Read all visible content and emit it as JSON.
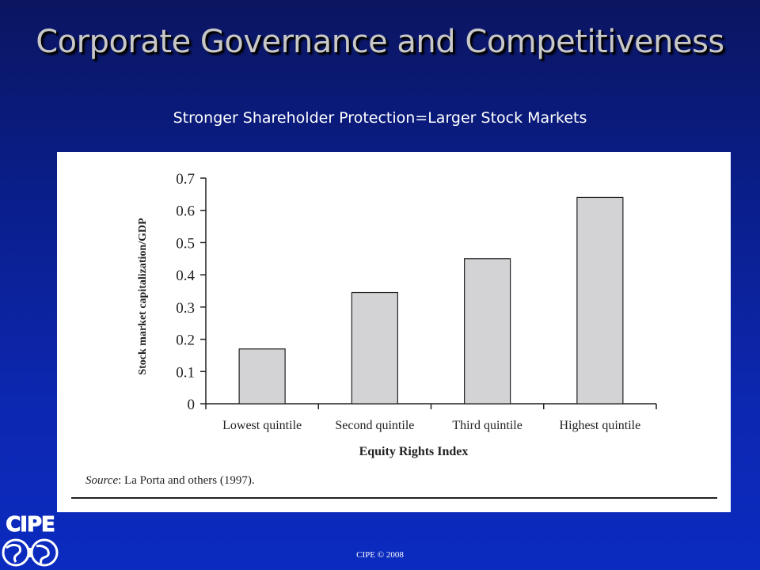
{
  "slide": {
    "title": "Corporate Governance and Competitiveness",
    "subtitle": "Stronger Shareholder Protection=Larger Stock Markets",
    "footer": "CIPE © 2008",
    "logo_text": "CIPE",
    "source_label": "Source",
    "source_text": ": La Porta and others (1997)."
  },
  "colors": {
    "bar_fill": "#d3d3d6",
    "bar_stroke": "#222222",
    "axis": "#222222"
  },
  "chart_data": {
    "type": "bar",
    "title": "",
    "xlabel": "Equity Rights Index",
    "ylabel": "Stock market capitalization/GDP",
    "categories": [
      "Lowest quintile",
      "Second quintile",
      "Third quintile",
      "Highest quintile"
    ],
    "values": [
      0.17,
      0.345,
      0.45,
      0.64
    ],
    "ylim": [
      0,
      0.7
    ],
    "yticks": [
      "0",
      "0.1",
      "0.2",
      "0.3",
      "0.4",
      "0.5",
      "0.6",
      "0.7"
    ],
    "grid": false,
    "legend": "none"
  }
}
